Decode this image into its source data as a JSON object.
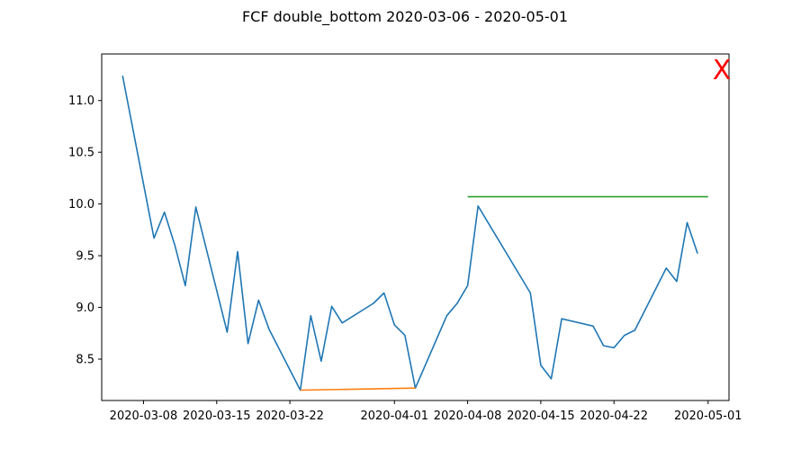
{
  "chart_data": {
    "type": "line",
    "title": "FCF double_bottom 2020-03-06 - 2020-05-01",
    "xlabel": "",
    "ylabel": "",
    "ylim": [
      8.1,
      11.45
    ],
    "xlim": [
      "2020-03-04",
      "2020-05-03"
    ],
    "grid": false,
    "y_ticks": [
      8.5,
      9.0,
      9.5,
      10.0,
      10.5,
      11.0
    ],
    "y_tick_labels": [
      "8.5",
      "9.0",
      "9.5",
      "10.0",
      "10.5",
      "11.0"
    ],
    "x_ticks": [
      "2020-03-08",
      "2020-03-15",
      "2020-03-22",
      "2020-04-01",
      "2020-04-08",
      "2020-04-15",
      "2020-04-22",
      "2020-05-01"
    ],
    "x_tick_labels": [
      "2020-03-08",
      "2020-03-15",
      "2020-03-22",
      "2020-04-01",
      "2020-04-08",
      "2020-04-15",
      "2020-04-22",
      "2020-05-01"
    ],
    "series": [
      {
        "color": "#1f77b4",
        "x": [
          "2020-03-06",
          "2020-03-09",
          "2020-03-10",
          "2020-03-11",
          "2020-03-12",
          "2020-03-13",
          "2020-03-16",
          "2020-03-17",
          "2020-03-18",
          "2020-03-19",
          "2020-03-20",
          "2020-03-23",
          "2020-03-24",
          "2020-03-25",
          "2020-03-26",
          "2020-03-27",
          "2020-03-30",
          "2020-03-31",
          "2020-04-01",
          "2020-04-02",
          "2020-04-03",
          "2020-04-06",
          "2020-04-07",
          "2020-04-08",
          "2020-04-09",
          "2020-04-14",
          "2020-04-15",
          "2020-04-16",
          "2020-04-17",
          "2020-04-20",
          "2020-04-21",
          "2020-04-22",
          "2020-04-23",
          "2020-04-24",
          "2020-04-27",
          "2020-04-28",
          "2020-04-29",
          "2020-04-30"
        ],
        "y": [
          11.24,
          9.67,
          9.92,
          9.6,
          9.21,
          9.97,
          8.76,
          9.54,
          8.65,
          9.07,
          8.79,
          8.2,
          8.92,
          8.48,
          9.01,
          8.85,
          9.04,
          9.14,
          8.83,
          8.73,
          8.22,
          8.92,
          9.04,
          9.21,
          9.98,
          9.14,
          8.44,
          8.31,
          8.89,
          8.82,
          8.63,
          8.61,
          8.73,
          8.78,
          9.38,
          9.25,
          9.82,
          9.52
        ]
      },
      {
        "color": "#ff7f0e",
        "x": [
          "2020-03-23",
          "2020-04-03"
        ],
        "y": [
          8.2,
          8.22
        ]
      },
      {
        "color": "#2ca02c",
        "x": [
          "2020-04-08",
          "2020-05-01"
        ],
        "y": [
          10.07,
          10.07
        ]
      }
    ],
    "annotations": [
      {
        "text": "X",
        "color": "#ff0000",
        "position": "top-right"
      }
    ]
  }
}
